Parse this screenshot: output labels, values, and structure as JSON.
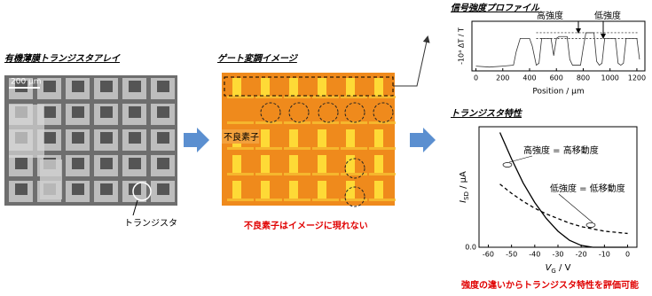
{
  "panels": {
    "array": {
      "title": "有機薄膜トランジスタアレイ",
      "scale": "200 μm",
      "callout": "トランジスタ"
    },
    "image": {
      "title": "ゲート変調イメージ",
      "callout": "不良素子",
      "note": "不良素子はイメージに現れない"
    },
    "profile_title": "信号強度プロファイル",
    "transfer_title": "トランジスタ特性",
    "conclusion": "強度の違いからトランジスタ特性を評価可能"
  },
  "chart_data": [
    {
      "type": "line",
      "xlabel": "Position / μm",
      "ylabel": "-10⁴ ΔT / T",
      "x": [
        0,
        100,
        200,
        280,
        300,
        330,
        400,
        420,
        450,
        470,
        490,
        560,
        580,
        600,
        620,
        680,
        700,
        720,
        780,
        800,
        820,
        880,
        900,
        920,
        940,
        960,
        1040,
        1060,
        1080,
        1100,
        1120,
        1200,
        1220
      ],
      "series": [
        {
          "color": "#333333",
          "values": [
            0.25,
            0.2,
            0.25,
            0.3,
            1.0,
            1.7,
            1.7,
            1.3,
            0.3,
            0.4,
            1.7,
            1.7,
            0.8,
            1.7,
            1.8,
            1.8,
            0.6,
            0.3,
            0.3,
            1.2,
            2.0,
            2.0,
            0.5,
            0.3,
            0.4,
            1.7,
            1.7,
            0.4,
            0.3,
            0.4,
            1.7,
            1.7,
            0.6
          ]
        }
      ],
      "reference_lines": [
        2.0,
        1.7
      ],
      "annotations": [
        "高強度",
        "低強度"
      ],
      "xlim": [
        -30,
        1260
      ],
      "ylim": [
        0,
        2.6
      ],
      "xticks": [
        0,
        200,
        400,
        600,
        800,
        1000,
        1200
      ]
    },
    {
      "type": "line",
      "xlabel": {
        "main": "V",
        "sub": "G",
        "unit": " / V"
      },
      "ylabel": {
        "main": "I",
        "sub": "SD",
        "unit": " / μA"
      },
      "x": [
        -55,
        -50,
        -45,
        -40,
        -35,
        -30,
        -25,
        -20,
        -15,
        -10,
        -5,
        0
      ],
      "series": [
        {
          "name": "高強度 = 高移動度",
          "color": "#000000",
          "dash": false,
          "values": [
            1.0,
            0.77,
            0.56,
            0.39,
            0.25,
            0.14,
            0.06,
            0.016,
            0,
            0,
            0,
            0
          ]
        },
        {
          "name": "低強度 = 低移動度",
          "color": "#000000",
          "dash": true,
          "values": [
            0.55,
            0.47,
            0.4,
            0.34,
            0.29,
            0.25,
            0.21,
            0.18,
            0.16,
            0.14,
            0.13,
            0.12
          ]
        }
      ],
      "xlim": [
        -64,
        4
      ],
      "ylim": [
        0,
        1.05
      ],
      "xticks": [
        -60,
        -50,
        -40,
        -30,
        -20,
        -10,
        0
      ],
      "yticks": [
        {
          "value": 0,
          "label": "0.0"
        }
      ]
    }
  ]
}
